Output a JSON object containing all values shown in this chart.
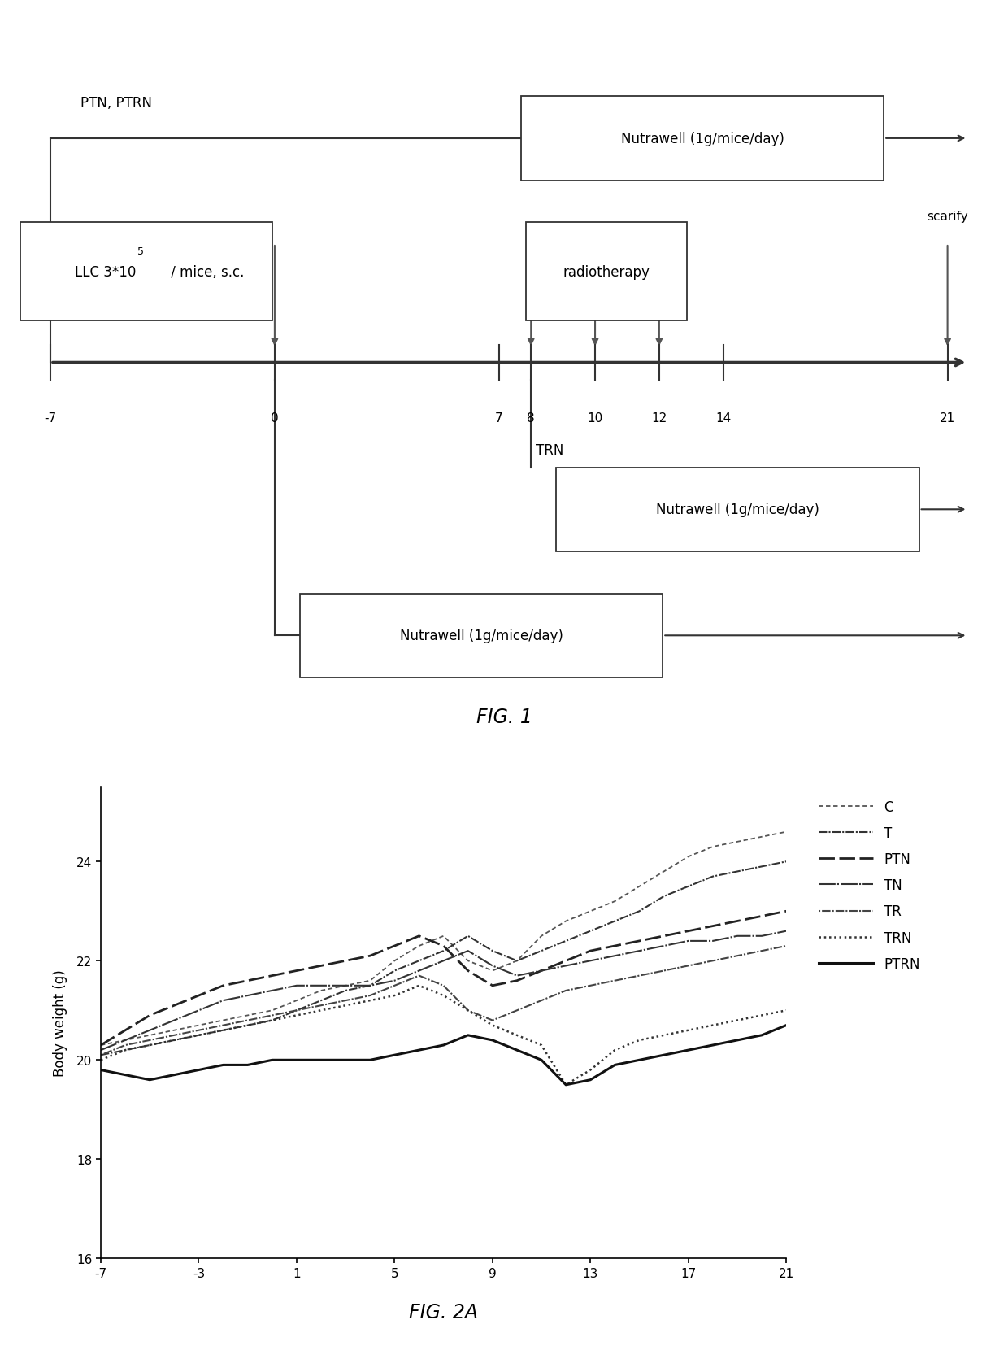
{
  "fig1": {
    "title": "FIG. 1"
  },
  "fig2": {
    "title": "FIG. 2A",
    "ylabel": "Body weight (g)",
    "xlim": [
      -7,
      21
    ],
    "ylim": [
      16,
      25.5
    ],
    "xticks": [
      -7,
      -3,
      1,
      5,
      9,
      13,
      17,
      21
    ],
    "yticks": [
      16,
      18,
      20,
      22,
      24
    ],
    "series": {
      "C": {
        "x": [
          -7,
          -6,
          -5,
          -4,
          -3,
          -2,
          -1,
          0,
          1,
          2,
          3,
          4,
          5,
          6,
          7,
          8,
          9,
          10,
          11,
          12,
          13,
          14,
          15,
          16,
          17,
          18,
          19,
          20,
          21
        ],
        "y": [
          20.3,
          20.4,
          20.5,
          20.6,
          20.7,
          20.8,
          20.9,
          21.0,
          21.2,
          21.4,
          21.5,
          21.6,
          22.0,
          22.3,
          22.5,
          22.0,
          21.8,
          22.0,
          22.5,
          22.8,
          23.0,
          23.2,
          23.5,
          23.8,
          24.1,
          24.3,
          24.4,
          24.5,
          24.6
        ]
      },
      "T": {
        "x": [
          -7,
          -6,
          -5,
          -4,
          -3,
          -2,
          -1,
          0,
          1,
          2,
          3,
          4,
          5,
          6,
          7,
          8,
          9,
          10,
          11,
          12,
          13,
          14,
          15,
          16,
          17,
          18,
          19,
          20,
          21
        ],
        "y": [
          20.1,
          20.2,
          20.3,
          20.4,
          20.5,
          20.6,
          20.7,
          20.8,
          21.0,
          21.2,
          21.4,
          21.5,
          21.8,
          22.0,
          22.2,
          22.5,
          22.2,
          22.0,
          22.2,
          22.4,
          22.6,
          22.8,
          23.0,
          23.3,
          23.5,
          23.7,
          23.8,
          23.9,
          24.0
        ]
      },
      "PTN": {
        "x": [
          -7,
          -6,
          -5,
          -4,
          -3,
          -2,
          -1,
          0,
          1,
          2,
          3,
          4,
          5,
          6,
          7,
          8,
          9,
          10,
          11,
          12,
          13,
          14,
          15,
          16,
          17,
          18,
          19,
          20,
          21
        ],
        "y": [
          20.3,
          20.6,
          20.9,
          21.1,
          21.3,
          21.5,
          21.6,
          21.7,
          21.8,
          21.9,
          22.0,
          22.1,
          22.3,
          22.5,
          22.3,
          21.8,
          21.5,
          21.6,
          21.8,
          22.0,
          22.2,
          22.3,
          22.4,
          22.5,
          22.6,
          22.7,
          22.8,
          22.9,
          23.0
        ]
      },
      "TN": {
        "x": [
          -7,
          -6,
          -5,
          -4,
          -3,
          -2,
          -1,
          0,
          1,
          2,
          3,
          4,
          5,
          6,
          7,
          8,
          9,
          10,
          11,
          12,
          13,
          14,
          15,
          16,
          17,
          18,
          19,
          20,
          21
        ],
        "y": [
          20.2,
          20.4,
          20.6,
          20.8,
          21.0,
          21.2,
          21.3,
          21.4,
          21.5,
          21.5,
          21.5,
          21.5,
          21.6,
          21.8,
          22.0,
          22.2,
          21.9,
          21.7,
          21.8,
          21.9,
          22.0,
          22.1,
          22.2,
          22.3,
          22.4,
          22.4,
          22.5,
          22.5,
          22.6
        ]
      },
      "TR": {
        "x": [
          -7,
          -6,
          -5,
          -4,
          -3,
          -2,
          -1,
          0,
          1,
          2,
          3,
          4,
          5,
          6,
          7,
          8,
          9,
          10,
          11,
          12,
          13,
          14,
          15,
          16,
          17,
          18,
          19,
          20,
          21
        ],
        "y": [
          20.1,
          20.3,
          20.4,
          20.5,
          20.6,
          20.7,
          20.8,
          20.9,
          21.0,
          21.1,
          21.2,
          21.3,
          21.5,
          21.7,
          21.5,
          21.0,
          20.8,
          21.0,
          21.2,
          21.4,
          21.5,
          21.6,
          21.7,
          21.8,
          21.9,
          22.0,
          22.1,
          22.2,
          22.3
        ]
      },
      "TRN": {
        "x": [
          -7,
          -6,
          -5,
          -4,
          -3,
          -2,
          -1,
          0,
          1,
          2,
          3,
          4,
          5,
          6,
          7,
          8,
          9,
          10,
          11,
          12,
          13,
          14,
          15,
          16,
          17,
          18,
          19,
          20,
          21
        ],
        "y": [
          20.0,
          20.2,
          20.3,
          20.4,
          20.5,
          20.6,
          20.7,
          20.8,
          20.9,
          21.0,
          21.1,
          21.2,
          21.3,
          21.5,
          21.3,
          21.0,
          20.7,
          20.5,
          20.3,
          19.5,
          19.8,
          20.2,
          20.4,
          20.5,
          20.6,
          20.7,
          20.8,
          20.9,
          21.0
        ]
      },
      "PTRN": {
        "x": [
          -7,
          -6,
          -5,
          -4,
          -3,
          -2,
          -1,
          0,
          1,
          2,
          3,
          4,
          5,
          6,
          7,
          8,
          9,
          10,
          11,
          12,
          13,
          14,
          15,
          16,
          17,
          18,
          19,
          20,
          21
        ],
        "y": [
          19.8,
          19.7,
          19.6,
          19.7,
          19.8,
          19.9,
          19.9,
          20.0,
          20.0,
          20.0,
          20.0,
          20.0,
          20.1,
          20.2,
          20.3,
          20.5,
          20.4,
          20.2,
          20.0,
          19.5,
          19.6,
          19.9,
          20.0,
          20.1,
          20.2,
          20.3,
          20.4,
          20.5,
          20.7
        ]
      }
    }
  }
}
